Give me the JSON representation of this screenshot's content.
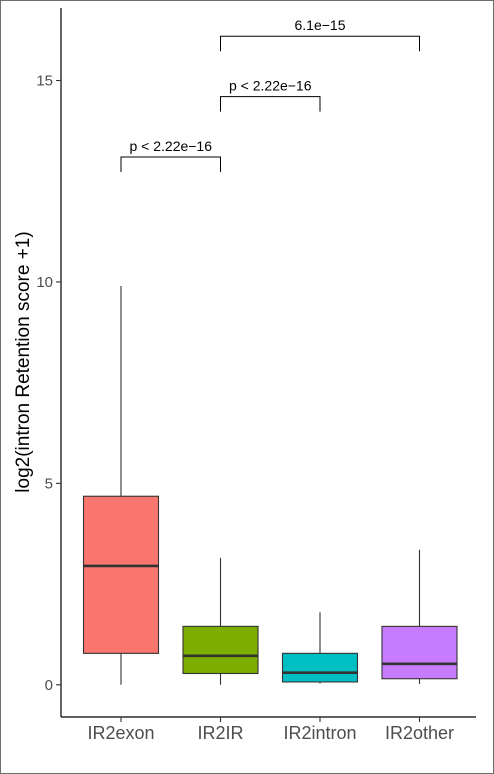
{
  "chart_data": {
    "type": "box",
    "title": "",
    "xlabel": "",
    "ylabel": "log2(intron Retention score +1)",
    "ylim": [
      -0.8,
      16.8
    ],
    "yticks": [
      0,
      5,
      10,
      15
    ],
    "grid": false,
    "legend": "none",
    "categories": [
      "IR2exon",
      "IR2IR",
      "IR2intron",
      "IR2other"
    ],
    "boxes": [
      {
        "category": "IR2exon",
        "whisker_low": 0,
        "q1": 0.78,
        "median": 2.95,
        "q3": 4.68,
        "whisker_high": 9.9,
        "color": "#F8766D"
      },
      {
        "category": "IR2IR",
        "whisker_low": 0,
        "q1": 0.28,
        "median": 0.72,
        "q3": 1.45,
        "whisker_high": 3.15,
        "color": "#7CAE00"
      },
      {
        "category": "IR2intron",
        "whisker_low": 0.03,
        "q1": 0.07,
        "median": 0.3,
        "q3": 0.78,
        "whisker_high": 1.8,
        "color": "#00BFC4"
      },
      {
        "category": "IR2other",
        "whisker_low": 0.02,
        "q1": 0.15,
        "median": 0.52,
        "q3": 1.45,
        "whisker_high": 3.35,
        "color": "#C77CFF"
      }
    ],
    "comparisons": [
      {
        "from": "IR2exon",
        "to": "IR2IR",
        "y": 13.1,
        "label": "p < 2.22e−16"
      },
      {
        "from": "IR2IR",
        "to": "IR2intron",
        "y": 14.6,
        "label": "p < 2.22e−16"
      },
      {
        "from": "IR2IR",
        "to": "IR2other",
        "y": 16.1,
        "label": "6.1e−15"
      }
    ]
  }
}
